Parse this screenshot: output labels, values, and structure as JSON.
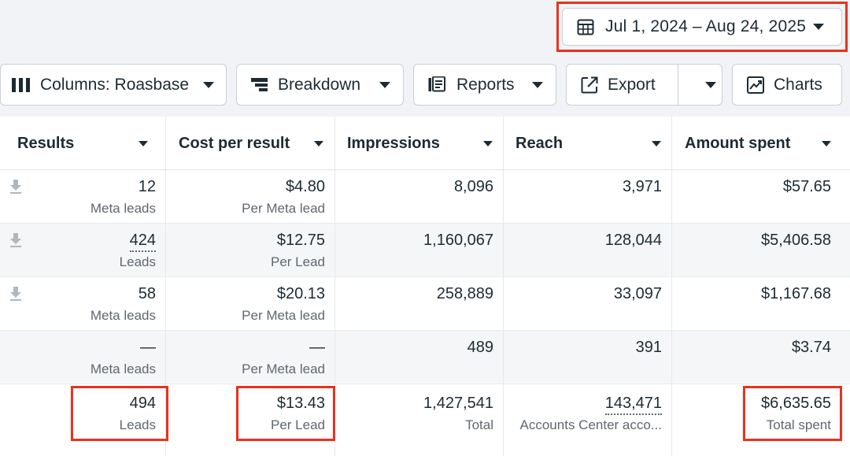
{
  "date_range": {
    "label": "Jul 1, 2024 – Aug 24, 2025"
  },
  "toolbar": {
    "columns_label": "Columns: Roasbase",
    "breakdown_label": "Breakdown",
    "reports_label": "Reports",
    "export_label": "Export",
    "charts_label": "Charts"
  },
  "table": {
    "headers": [
      "Results",
      "Cost per result",
      "Impressions",
      "Reach",
      "Amount spent"
    ],
    "rows": [
      {
        "results": "12",
        "results_sub": "Meta leads",
        "cost": "$4.80",
        "cost_sub": "Per Meta lead",
        "impressions": "8,096",
        "reach": "3,971",
        "spent": "$57.65"
      },
      {
        "results": "424",
        "results_sub": "Leads",
        "cost": "$12.75",
        "cost_sub": "Per Lead",
        "impressions": "1,160,067",
        "reach": "128,044",
        "spent": "$5,406.58"
      },
      {
        "results": "58",
        "results_sub": "Meta leads",
        "cost": "$20.13",
        "cost_sub": "Per Meta lead",
        "impressions": "258,889",
        "reach": "33,097",
        "spent": "$1,167.68"
      },
      {
        "results": "—",
        "results_sub": "Meta leads",
        "cost": "—",
        "cost_sub": "Per Meta lead",
        "impressions": "489",
        "reach": "391",
        "spent": "$3.74"
      }
    ],
    "totals": {
      "results": "494",
      "results_sub": "Leads",
      "cost": "$13.43",
      "cost_sub": "Per Lead",
      "impressions": "1,427,541",
      "impressions_sub": "Total",
      "reach": "143,471",
      "reach_sub": "Accounts Center acco...",
      "spent": "$6,635.65",
      "spent_sub": "Total spent"
    }
  },
  "colors": {
    "highlight": "#e8321e",
    "text": "#1c2b33",
    "muted": "#606770",
    "background": "#f1f3f6"
  }
}
